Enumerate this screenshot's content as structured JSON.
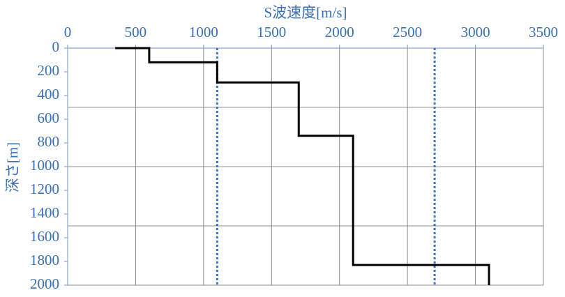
{
  "chart_data": {
    "type": "line",
    "title": "S波速度[m/s]",
    "y_label": "深さ[m]",
    "xlim": [
      0,
      3500
    ],
    "xticks": [
      0,
      500,
      1000,
      1500,
      2000,
      2500,
      3000,
      3500
    ],
    "ylim": [
      0,
      2000
    ],
    "yticks": [
      0,
      200,
      400,
      600,
      800,
      1000,
      1200,
      1400,
      1600,
      1800,
      2000
    ],
    "y_inverted": true,
    "x_axis_position": "top",
    "grid": true,
    "ygrid": [
      500,
      1000,
      1500,
      2000
    ],
    "reference_lines": {
      "color": "#3a70d0",
      "x": [
        1100,
        2700
      ]
    },
    "series": [
      {
        "color": "#000000",
        "x": [
          350,
          600,
          600,
          1100,
          1100,
          1700,
          1700,
          2100,
          2100,
          3100,
          3100
        ],
        "values": [
          0,
          0,
          120,
          120,
          290,
          290,
          740,
          740,
          1830,
          1830,
          2000
        ]
      }
    ]
  }
}
